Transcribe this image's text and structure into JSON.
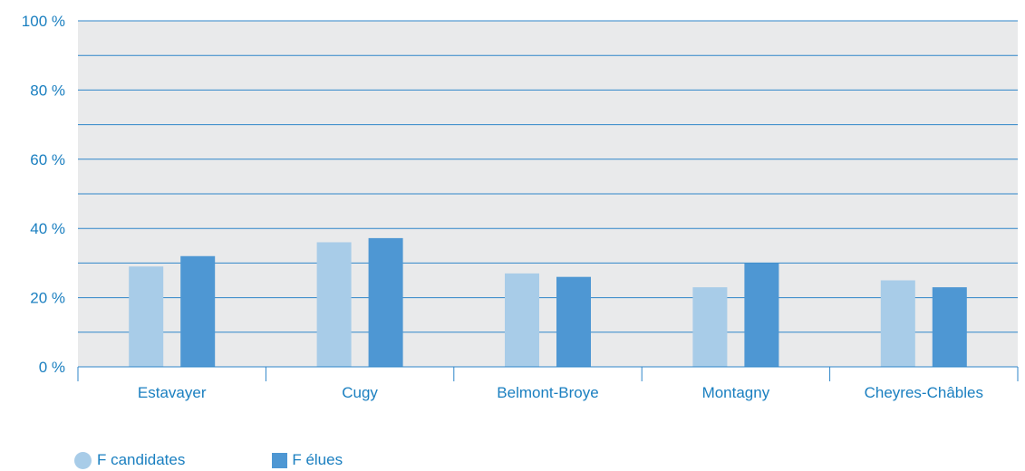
{
  "colors": {
    "text": "#1a7fc0",
    "plot_bg": "#e9eaeb",
    "grid": "#2f86c9",
    "axis": "#2f86c9"
  },
  "chart_data": {
    "type": "bar",
    "categories": [
      "Estavayer",
      "Cugy",
      "Belmont-Broye",
      "Montagny",
      "Cheyres-Châbles"
    ],
    "series": [
      {
        "name": "F candidates",
        "color": "#a8cce8",
        "values": [
          29,
          36,
          27,
          23,
          25
        ]
      },
      {
        "name": "F élues",
        "color": "#4e97d3",
        "values": [
          32,
          37.2,
          26,
          30,
          23
        ]
      }
    ],
    "ylim": [
      0,
      100
    ],
    "yticks": [
      0,
      20,
      40,
      60,
      80,
      100
    ],
    "ytick_labels": [
      "0 %",
      "20 %",
      "40 %",
      "60 %",
      "80 %",
      "100 %"
    ],
    "grid_step": 10,
    "grid": true,
    "legend_position": "bottom-left",
    "title": "",
    "xlabel": "",
    "ylabel": ""
  }
}
